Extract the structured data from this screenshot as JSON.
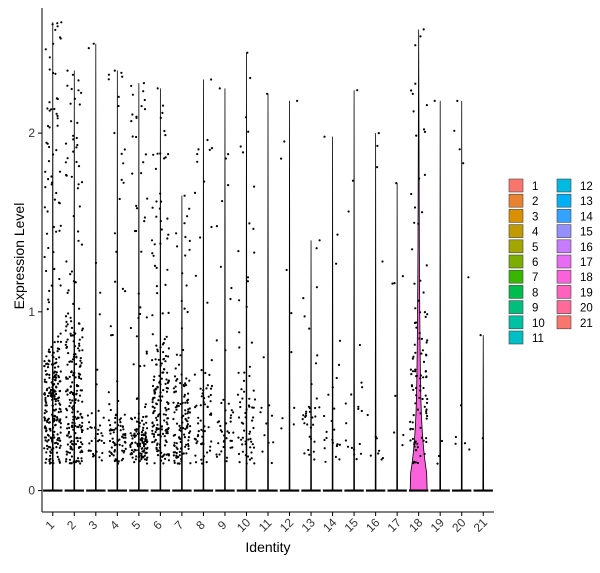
{
  "chart_data": {
    "type": "violin",
    "xlabel": "Identity",
    "ylabel": "Expression Level",
    "categories": [
      "1",
      "2",
      "3",
      "4",
      "5",
      "6",
      "7",
      "8",
      "9",
      "10",
      "11",
      "12",
      "13",
      "14",
      "15",
      "16",
      "17",
      "18",
      "19",
      "20",
      "21"
    ],
    "ylim": [
      -0.12,
      2.7
    ],
    "y_ticks": [
      0,
      1,
      2
    ],
    "grid": false,
    "legend_position": "right",
    "colors": [
      "#F8766D",
      "#EA8331",
      "#D89000",
      "#C09B00",
      "#A3A500",
      "#7CAE00",
      "#39B600",
      "#00BB4E",
      "#00BF7D",
      "#00C1A3",
      "#00BFC4",
      "#00BAE0",
      "#00B0F6",
      "#35A2FF",
      "#9590FF",
      "#C77CFF",
      "#E76BF3",
      "#FA62DB",
      "#FF62BC",
      "#FF6A98",
      "#F8766D"
    ],
    "series": [
      {
        "name": "1",
        "n_dots": 280,
        "dense_max": 0.9,
        "max": 2.62,
        "median": 0.5
      },
      {
        "name": "2",
        "n_dots": 230,
        "dense_max": 1.1,
        "max": 2.35,
        "median": 0.55
      },
      {
        "name": "3",
        "n_dots": 40,
        "dense_max": 0.5,
        "max": 2.5,
        "median": 0.4
      },
      {
        "name": "4",
        "n_dots": 90,
        "dense_max": 0.45,
        "max": 2.35,
        "median": 0.3
      },
      {
        "name": "5",
        "n_dots": 160,
        "dense_max": 0.45,
        "max": 2.28,
        "median": 0.28
      },
      {
        "name": "6",
        "n_dots": 190,
        "dense_max": 0.9,
        "max": 2.25,
        "median": 0.45
      },
      {
        "name": "7",
        "n_dots": 130,
        "dense_max": 0.7,
        "max": 1.65,
        "median": 0.35
      },
      {
        "name": "8",
        "n_dots": 70,
        "dense_max": 0.8,
        "max": 2.3,
        "median": 0.45
      },
      {
        "name": "9",
        "n_dots": 45,
        "dense_max": 0.6,
        "max": 2.25,
        "median": 0.4
      },
      {
        "name": "10",
        "n_dots": 70,
        "dense_max": 0.7,
        "max": 2.45,
        "median": 0.45
      },
      {
        "name": "11",
        "n_dots": 12,
        "dense_max": 0.5,
        "max": 2.22,
        "median": 0.4
      },
      {
        "name": "12",
        "n_dots": 10,
        "dense_max": 0.5,
        "max": 2.18,
        "median": 0.45
      },
      {
        "name": "13",
        "n_dots": 35,
        "dense_max": 0.7,
        "max": 1.4,
        "median": 0.5
      },
      {
        "name": "14",
        "n_dots": 25,
        "dense_max": 0.6,
        "max": 1.98,
        "median": 0.45
      },
      {
        "name": "15",
        "n_dots": 20,
        "dense_max": 0.7,
        "max": 2.24,
        "median": 0.5
      },
      {
        "name": "16",
        "n_dots": 12,
        "dense_max": 0.5,
        "max": 2.0,
        "median": 0.45
      },
      {
        "name": "17",
        "n_dots": 8,
        "dense_max": 0.5,
        "max": 1.72,
        "median": 0.4
      },
      {
        "name": "18",
        "n_dots": 110,
        "dense_max": 1.3,
        "max": 2.58,
        "median": 0.5
      },
      {
        "name": "19",
        "n_dots": 4,
        "dense_max": 0.4,
        "max": 2.18,
        "median": 0.35
      },
      {
        "name": "20",
        "n_dots": 10,
        "dense_max": 0.7,
        "max": 2.18,
        "median": 0.5
      },
      {
        "name": "21",
        "n_dots": 2,
        "dense_max": 0.5,
        "max": 0.87,
        "median": 0.4
      }
    ]
  },
  "legend": {
    "items": [
      "1",
      "2",
      "3",
      "4",
      "5",
      "6",
      "7",
      "8",
      "9",
      "10",
      "11",
      "12",
      "13",
      "14",
      "15",
      "16",
      "17",
      "18",
      "19",
      "20",
      "21"
    ]
  }
}
